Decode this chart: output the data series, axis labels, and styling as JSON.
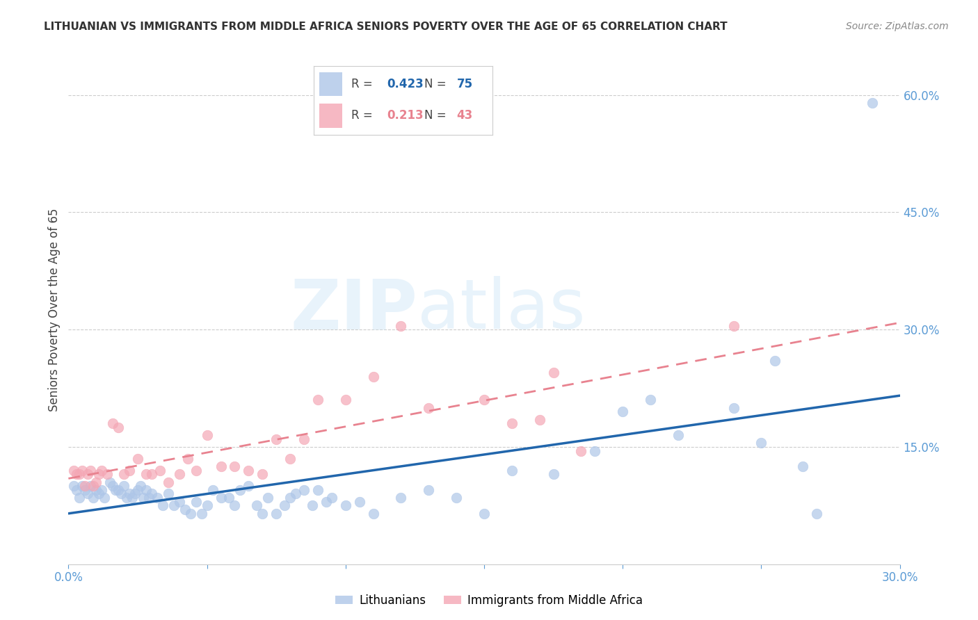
{
  "title": "LITHUANIAN VS IMMIGRANTS FROM MIDDLE AFRICA SENIORS POVERTY OVER THE AGE OF 65 CORRELATION CHART",
  "source": "Source: ZipAtlas.com",
  "xlabel_color": "#5b9bd5",
  "ylabel": "Seniors Poverty Over the Age of 65",
  "xlim": [
    0.0,
    0.3
  ],
  "ylim": [
    0.0,
    0.65
  ],
  "x_ticks": [
    0.0,
    0.05,
    0.1,
    0.15,
    0.2,
    0.25,
    0.3
  ],
  "x_tick_labels": [
    "0.0%",
    "",
    "",
    "",
    "",
    "",
    "30.0%"
  ],
  "y_ticks_right": [
    0.15,
    0.3,
    0.45,
    0.6
  ],
  "y_tick_labels_right": [
    "15.0%",
    "30.0%",
    "45.0%",
    "60.0%"
  ],
  "grid_color": "#cccccc",
  "background_color": "#ffffff",
  "blue_color": "#aec6e8",
  "pink_color": "#f4a7b5",
  "blue_line_color": "#2166ac",
  "pink_line_color": "#e8828f",
  "legend_R_blue": "0.423",
  "legend_N_blue": "75",
  "legend_R_pink": "0.213",
  "legend_N_pink": "43",
  "watermark_zip": "ZIP",
  "watermark_atlas": "atlas",
  "blue_scatter_x": [
    0.002,
    0.003,
    0.004,
    0.005,
    0.006,
    0.007,
    0.008,
    0.009,
    0.01,
    0.011,
    0.012,
    0.013,
    0.015,
    0.016,
    0.017,
    0.018,
    0.019,
    0.02,
    0.021,
    0.022,
    0.023,
    0.024,
    0.025,
    0.026,
    0.027,
    0.028,
    0.029,
    0.03,
    0.032,
    0.034,
    0.036,
    0.038,
    0.04,
    0.042,
    0.044,
    0.046,
    0.048,
    0.05,
    0.052,
    0.055,
    0.058,
    0.06,
    0.062,
    0.065,
    0.068,
    0.07,
    0.072,
    0.075,
    0.078,
    0.08,
    0.082,
    0.085,
    0.088,
    0.09,
    0.093,
    0.095,
    0.1,
    0.105,
    0.11,
    0.12,
    0.13,
    0.14,
    0.15,
    0.16,
    0.175,
    0.19,
    0.2,
    0.21,
    0.22,
    0.24,
    0.25,
    0.255,
    0.265,
    0.27,
    0.29
  ],
  "blue_scatter_y": [
    0.1,
    0.095,
    0.085,
    0.1,
    0.095,
    0.09,
    0.1,
    0.085,
    0.095,
    0.09,
    0.095,
    0.085,
    0.105,
    0.1,
    0.095,
    0.095,
    0.09,
    0.1,
    0.085,
    0.09,
    0.085,
    0.09,
    0.095,
    0.1,
    0.085,
    0.095,
    0.085,
    0.09,
    0.085,
    0.075,
    0.09,
    0.075,
    0.08,
    0.07,
    0.065,
    0.08,
    0.065,
    0.075,
    0.095,
    0.085,
    0.085,
    0.075,
    0.095,
    0.1,
    0.075,
    0.065,
    0.085,
    0.065,
    0.075,
    0.085,
    0.09,
    0.095,
    0.075,
    0.095,
    0.08,
    0.085,
    0.075,
    0.08,
    0.065,
    0.085,
    0.095,
    0.085,
    0.065,
    0.12,
    0.115,
    0.145,
    0.195,
    0.21,
    0.165,
    0.2,
    0.155,
    0.26,
    0.125,
    0.065,
    0.59
  ],
  "pink_scatter_x": [
    0.002,
    0.003,
    0.004,
    0.005,
    0.006,
    0.007,
    0.008,
    0.009,
    0.01,
    0.011,
    0.012,
    0.014,
    0.016,
    0.018,
    0.02,
    0.022,
    0.025,
    0.028,
    0.03,
    0.033,
    0.036,
    0.04,
    0.043,
    0.046,
    0.05,
    0.055,
    0.06,
    0.065,
    0.07,
    0.075,
    0.08,
    0.085,
    0.09,
    0.1,
    0.11,
    0.12,
    0.13,
    0.15,
    0.16,
    0.17,
    0.175,
    0.185,
    0.24
  ],
  "pink_scatter_y": [
    0.12,
    0.115,
    0.115,
    0.12,
    0.1,
    0.115,
    0.12,
    0.1,
    0.105,
    0.115,
    0.12,
    0.115,
    0.18,
    0.175,
    0.115,
    0.12,
    0.135,
    0.115,
    0.115,
    0.12,
    0.105,
    0.115,
    0.135,
    0.12,
    0.165,
    0.125,
    0.125,
    0.12,
    0.115,
    0.16,
    0.135,
    0.16,
    0.21,
    0.21,
    0.24,
    0.305,
    0.2,
    0.21,
    0.18,
    0.185,
    0.245,
    0.145,
    0.305
  ]
}
